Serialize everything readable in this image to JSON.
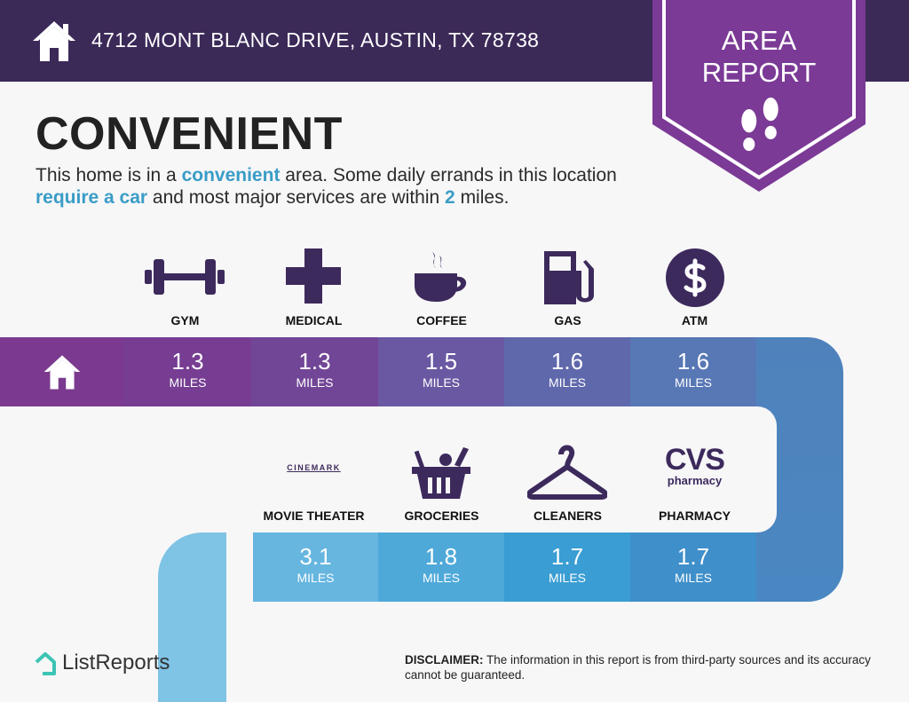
{
  "header": {
    "address": "4712 MONT BLANC DRIVE, AUSTIN, TX 78738",
    "home_icon": "house-icon"
  },
  "badge": {
    "line1": "AREA",
    "line2": "REPORT",
    "icon": "footprints-icon"
  },
  "rating": {
    "title": "CONVENIENT",
    "desc": {
      "p1": "This home is in a ",
      "h1": "convenient",
      "p2": " area. Some daily errands in this location ",
      "h2": "require a car",
      "p3": " and most major services are within ",
      "h3": "2",
      "p4": " miles."
    }
  },
  "row1": [
    {
      "label": "GYM",
      "icon": "dumbbell-icon",
      "distance": "1.3",
      "unit": "MILES"
    },
    {
      "label": "MEDICAL",
      "icon": "medical-cross-icon",
      "distance": "1.3",
      "unit": "MILES"
    },
    {
      "label": "COFFEE",
      "icon": "coffee-cup-icon",
      "distance": "1.5",
      "unit": "MILES"
    },
    {
      "label": "GAS",
      "icon": "gas-pump-icon",
      "distance": "1.6",
      "unit": "MILES"
    },
    {
      "label": "ATM",
      "icon": "dollar-icon",
      "distance": "1.6",
      "unit": "MILES"
    }
  ],
  "row2": [
    {
      "label": "MOVIE THEATER",
      "icon": "cinemark-logo",
      "logo_text": "CINEMARK",
      "distance": "3.1",
      "unit": "MILES"
    },
    {
      "label": "GROCERIES",
      "icon": "grocery-basket-icon",
      "distance": "1.8",
      "unit": "MILES"
    },
    {
      "label": "CLEANERS",
      "icon": "hanger-icon",
      "distance": "1.7",
      "unit": "MILES"
    },
    {
      "label": "PHARMACY",
      "icon": "cvs-logo",
      "logo_text": "CVS",
      "logo_sub": "pharmacy",
      "distance": "1.7",
      "unit": "MILES"
    }
  ],
  "footer": {
    "brand": "ListReports",
    "disclaimer_label": "DISCLAIMER:",
    "disclaimer": " The information in this report is from third-party sources and its accuracy cannot be guaranteed."
  },
  "colors": {
    "header": "#3b2958",
    "badge": "#7b3a96",
    "highlight": "#3a9cc6",
    "icons": "#3d2a5c"
  }
}
